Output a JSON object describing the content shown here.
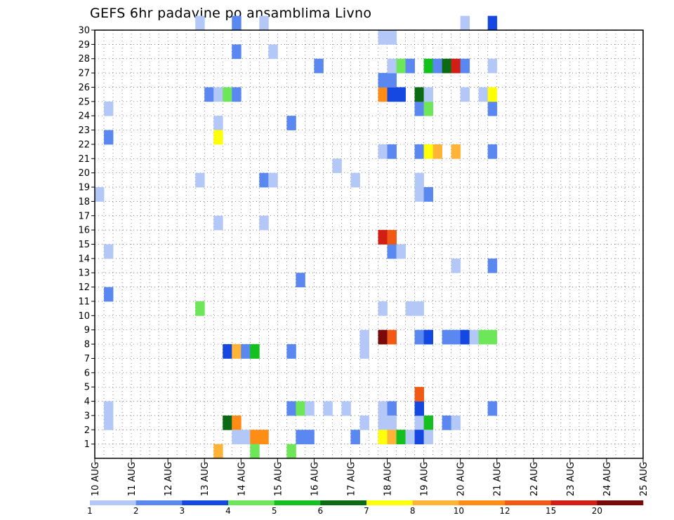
{
  "chart_data": {
    "type": "heatmap",
    "title": "GEFS 6hr padavine po ansamblima Livno",
    "xlabel": "",
    "ylabel": "",
    "x_ticks": [
      "10 AUG",
      "11 AUG",
      "12 AUG",
      "13 AUG",
      "14 AUG",
      "15 AUG",
      "16 AUG",
      "17 AUG",
      "18 AUG",
      "19 AUG",
      "20 AUG",
      "21 AUG",
      "22 AUG",
      "23 AUG",
      "24 AUG",
      "25 AUG"
    ],
    "xlim": [
      0,
      60
    ],
    "y_ticks": [
      1,
      2,
      3,
      4,
      5,
      6,
      7,
      8,
      9,
      10,
      11,
      12,
      13,
      14,
      15,
      16,
      17,
      18,
      19,
      20,
      21,
      22,
      23,
      24,
      25,
      26,
      27,
      28,
      29,
      30
    ],
    "ylim": [
      0,
      30
    ],
    "grid": true,
    "legend_placement": "bottom",
    "legend": {
      "labels": [
        "1",
        "2",
        "3",
        "4",
        "5",
        "6",
        "7",
        "8",
        "10",
        "12",
        "15",
        "20"
      ],
      "colors": [
        "#b4c8f8",
        "#5a88f0",
        "#1448e0",
        "#6ee65a",
        "#14c01e",
        "#0c6a14",
        "#ffff0a",
        "#ffb437",
        "#ff8c14",
        "#f05a14",
        "#d21e14",
        "#780a0a"
      ]
    },
    "note": "cells: [period, member, colorIndex]; period 0 = 10 AUG 00Z (6-hourly), member = ensemble row",
    "cells": [
      [
        1,
        11,
        1
      ],
      [
        1,
        14,
        0
      ],
      [
        1,
        2,
        0
      ],
      [
        1,
        3,
        0
      ],
      [
        1,
        22,
        1
      ],
      [
        1,
        24,
        0
      ],
      [
        0,
        18,
        0
      ],
      [
        11,
        19,
        0
      ],
      [
        11,
        30,
        0
      ],
      [
        11,
        10,
        3
      ],
      [
        12,
        25,
        1
      ],
      [
        13,
        25,
        0
      ],
      [
        13,
        16,
        0
      ],
      [
        13,
        23,
        0
      ],
      [
        13,
        22,
        6
      ],
      [
        13,
        0,
        7
      ],
      [
        14,
        25,
        3
      ],
      [
        14,
        2,
        5
      ],
      [
        14,
        7,
        2
      ],
      [
        15,
        25,
        1
      ],
      [
        15,
        28,
        1
      ],
      [
        15,
        30,
        1
      ],
      [
        15,
        7,
        7
      ],
      [
        15,
        2,
        8
      ],
      [
        15,
        1,
        0
      ],
      [
        16,
        1,
        0
      ],
      [
        16,
        7,
        1
      ],
      [
        17,
        1,
        8
      ],
      [
        17,
        7,
        4
      ],
      [
        17,
        0,
        3
      ],
      [
        18,
        30,
        0
      ],
      [
        18,
        16,
        0
      ],
      [
        18,
        19,
        1
      ],
      [
        18,
        1,
        8
      ],
      [
        19,
        19,
        0
      ],
      [
        19,
        28,
        0
      ],
      [
        21,
        23,
        1
      ],
      [
        21,
        7,
        1
      ],
      [
        21,
        3,
        1
      ],
      [
        21,
        0,
        3
      ],
      [
        22,
        1,
        1
      ],
      [
        22,
        3,
        3
      ],
      [
        22,
        12,
        1
      ],
      [
        23,
        1,
        1
      ],
      [
        23,
        3,
        0
      ],
      [
        24,
        27,
        1
      ],
      [
        25,
        3,
        0
      ],
      [
        26,
        20,
        0
      ],
      [
        27,
        3,
        0
      ],
      [
        28,
        19,
        0
      ],
      [
        28,
        1,
        1
      ],
      [
        29,
        2,
        0
      ],
      [
        29,
        8,
        0
      ],
      [
        29,
        7,
        0
      ],
      [
        31,
        10,
        0
      ],
      [
        31,
        15,
        10
      ],
      [
        31,
        21,
        0
      ],
      [
        31,
        25,
        8
      ],
      [
        31,
        26,
        1
      ],
      [
        31,
        29,
        0
      ],
      [
        31,
        3,
        0
      ],
      [
        31,
        2,
        0
      ],
      [
        31,
        1,
        6
      ],
      [
        31,
        8,
        11
      ],
      [
        32,
        14,
        1
      ],
      [
        32,
        15,
        9
      ],
      [
        32,
        21,
        1
      ],
      [
        32,
        25,
        2
      ],
      [
        32,
        26,
        1
      ],
      [
        32,
        27,
        0
      ],
      [
        32,
        29,
        0
      ],
      [
        32,
        3,
        1
      ],
      [
        32,
        2,
        0
      ],
      [
        32,
        1,
        7
      ],
      [
        32,
        8,
        9
      ],
      [
        33,
        14,
        0
      ],
      [
        33,
        25,
        2
      ],
      [
        33,
        27,
        3
      ],
      [
        33,
        1,
        4
      ],
      [
        34,
        27,
        1
      ],
      [
        34,
        10,
        0
      ],
      [
        34,
        1,
        0
      ],
      [
        35,
        18,
        0
      ],
      [
        35,
        19,
        0
      ],
      [
        35,
        21,
        1
      ],
      [
        35,
        24,
        1
      ],
      [
        35,
        25,
        5
      ],
      [
        35,
        2,
        0
      ],
      [
        35,
        3,
        2
      ],
      [
        35,
        4,
        9
      ],
      [
        35,
        1,
        2
      ],
      [
        35,
        8,
        1
      ],
      [
        35,
        10,
        0
      ],
      [
        36,
        18,
        1
      ],
      [
        36,
        21,
        6
      ],
      [
        36,
        24,
        3
      ],
      [
        36,
        25,
        0
      ],
      [
        36,
        27,
        4
      ],
      [
        36,
        2,
        4
      ],
      [
        36,
        1,
        0
      ],
      [
        36,
        8,
        2
      ],
      [
        37,
        21,
        7
      ],
      [
        37,
        27,
        1
      ],
      [
        38,
        27,
        5
      ],
      [
        38,
        2,
        1
      ],
      [
        38,
        8,
        1
      ],
      [
        39,
        13,
        0
      ],
      [
        39,
        21,
        7
      ],
      [
        39,
        2,
        0
      ],
      [
        39,
        27,
        10
      ],
      [
        39,
        8,
        1
      ],
      [
        40,
        27,
        1
      ],
      [
        40,
        25,
        0
      ],
      [
        40,
        30,
        0
      ],
      [
        40,
        8,
        2
      ],
      [
        41,
        8,
        0
      ],
      [
        42,
        25,
        0
      ],
      [
        42,
        8,
        3
      ],
      [
        43,
        13,
        1
      ],
      [
        43,
        21,
        1
      ],
      [
        43,
        24,
        1
      ],
      [
        43,
        25,
        6
      ],
      [
        43,
        27,
        0
      ],
      [
        43,
        3,
        1
      ],
      [
        43,
        8,
        3
      ],
      [
        43,
        30,
        2
      ]
    ]
  }
}
